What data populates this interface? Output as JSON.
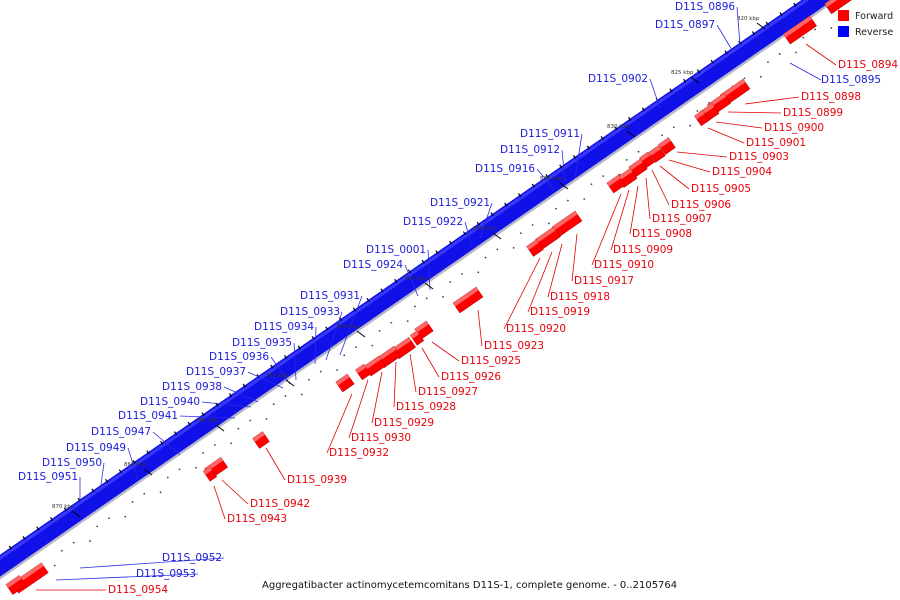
{
  "caption": "Aggregatibacter actinomycetemcomitans D11S-1, complete genome. - 0..2105764",
  "legend": {
    "forward_label": "Forward",
    "reverse_label": "Reverse",
    "forward_color": "#ff0000",
    "reverse_color": "#0000ff"
  },
  "kbp_labels": [
    "820 kbp",
    "825 kbp",
    "830 kbp",
    "835 kbp",
    "840 kbp",
    "845 kbp",
    "850 kbp",
    "855 kbp",
    "860 kbp",
    "865 kbp",
    "870 kbp"
  ],
  "reverse_genes": [
    "D11S_0896",
    "D11S_0897",
    "D11S_0895",
    "D11S_0902",
    "D11S_0911",
    "D11S_0912",
    "D11S_0916",
    "D11S_0921",
    "D11S_0922",
    "D11S_0001",
    "D11S_0924",
    "D11S_0931",
    "D11S_0933",
    "D11S_0934",
    "D11S_0935",
    "D11S_0936",
    "D11S_0937",
    "D11S_0938",
    "D11S_0940",
    "D11S_0941",
    "D11S_0947",
    "D11S_0949",
    "D11S_0950",
    "D11S_0951",
    "D11S_0952",
    "D11S_0953"
  ],
  "forward_genes": [
    "D11S_0894",
    "D11S_0898",
    "D11S_0899",
    "D11S_0900",
    "D11S_0901",
    "D11S_0903",
    "D11S_0904",
    "D11S_0905",
    "D11S_0906",
    "D11S_0907",
    "D11S_0908",
    "D11S_0909",
    "D11S_0910",
    "D11S_0917",
    "D11S_0918",
    "D11S_0919",
    "D11S_0920",
    "D11S_0923",
    "D11S_0925",
    "D11S_0926",
    "D11S_0927",
    "D11S_0928",
    "D11S_0929",
    "D11S_0930",
    "D11S_0932",
    "D11S_0939",
    "D11S_0942",
    "D11S_0943",
    "D11S_0954"
  ]
}
